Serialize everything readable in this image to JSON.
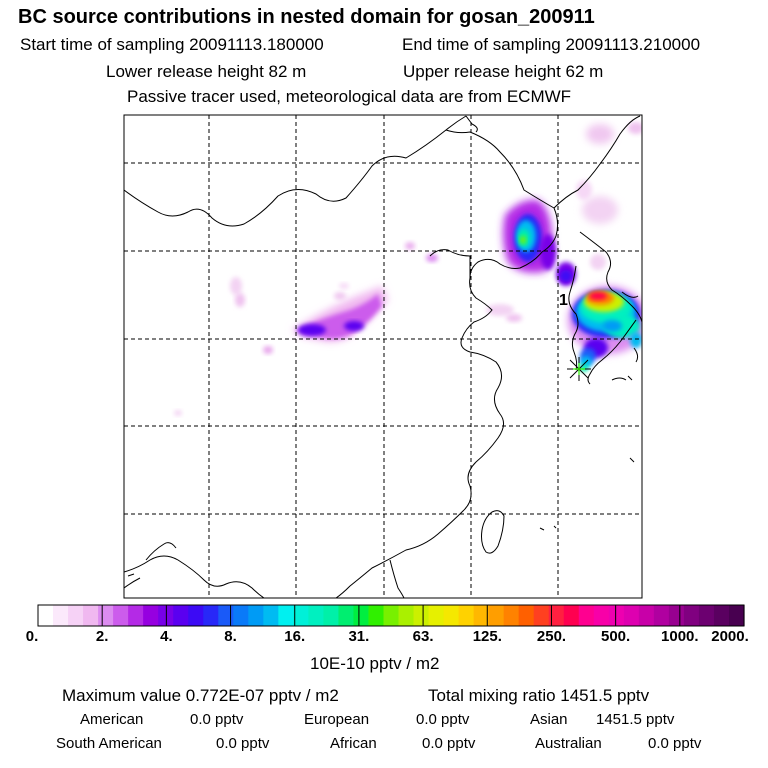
{
  "header": {
    "title": "BC  source contributions in nested domain for gosan_200911",
    "start_time": "Start time of sampling 20091113.180000",
    "end_time": "End time of sampling 20091113.210000",
    "lower_release": "Lower release height   82 m",
    "upper_release": "Upper release height   62 m",
    "tracer_note": "Passive tracer used, meteorological data are from ECMWF"
  },
  "map": {
    "receptor_label": "1",
    "receptor_marker": "asterisk-star-icon",
    "gridlines": "dashed"
  },
  "colorbar": {
    "labels": [
      "0.",
      "2.",
      "4.",
      "8.",
      "16.",
      "31.",
      "63.",
      "125.",
      "250.",
      "500.",
      "1000.",
      "2000."
    ],
    "colors": [
      "#ffffff",
      "#fbe9fb",
      "#f6d2f6",
      "#f0b8f0",
      "#dc8cf0",
      "#cc5cec",
      "#b42ae6",
      "#9600e0",
      "#7800e8",
      "#5a00f0",
      "#3c0af5",
      "#2828f8",
      "#1a5af8",
      "#0a7af8",
      "#009bf5",
      "#00bbf2",
      "#00f0f0",
      "#00f0d8",
      "#00f0c0",
      "#00f0a8",
      "#00ee70",
      "#00ee40",
      "#30f000",
      "#78f000",
      "#aaf000",
      "#ccf000",
      "#e6f000",
      "#f5e800",
      "#ffd200",
      "#ffb800",
      "#ff9e00",
      "#ff8200",
      "#ff6000",
      "#ff4020",
      "#ff2040",
      "#ff0050",
      "#ff0090",
      "#f800a8",
      "#ee00b0",
      "#de00b0",
      "#c800a8",
      "#b000a0",
      "#980090",
      "#800080",
      "#6c0070",
      "#5a0060",
      "#480050"
    ],
    "unit": "10E-10 pptv / m2"
  },
  "stats": {
    "maximum": "Maximum value  0.772E-07 pptv / m2",
    "total": "Total mixing ratio     1451.5 pptv",
    "american": "American",
    "american_val": "0.0 pptv",
    "european": "European",
    "european_val": "0.0 pptv",
    "asian": "Asian",
    "asian_val": "1451.5 pptv",
    "south_american": "South American",
    "south_american_val": "0.0 pptv",
    "african": "African",
    "african_val": "0.0 pptv",
    "australian": "Australian",
    "australian_val": "0.0 pptv"
  }
}
